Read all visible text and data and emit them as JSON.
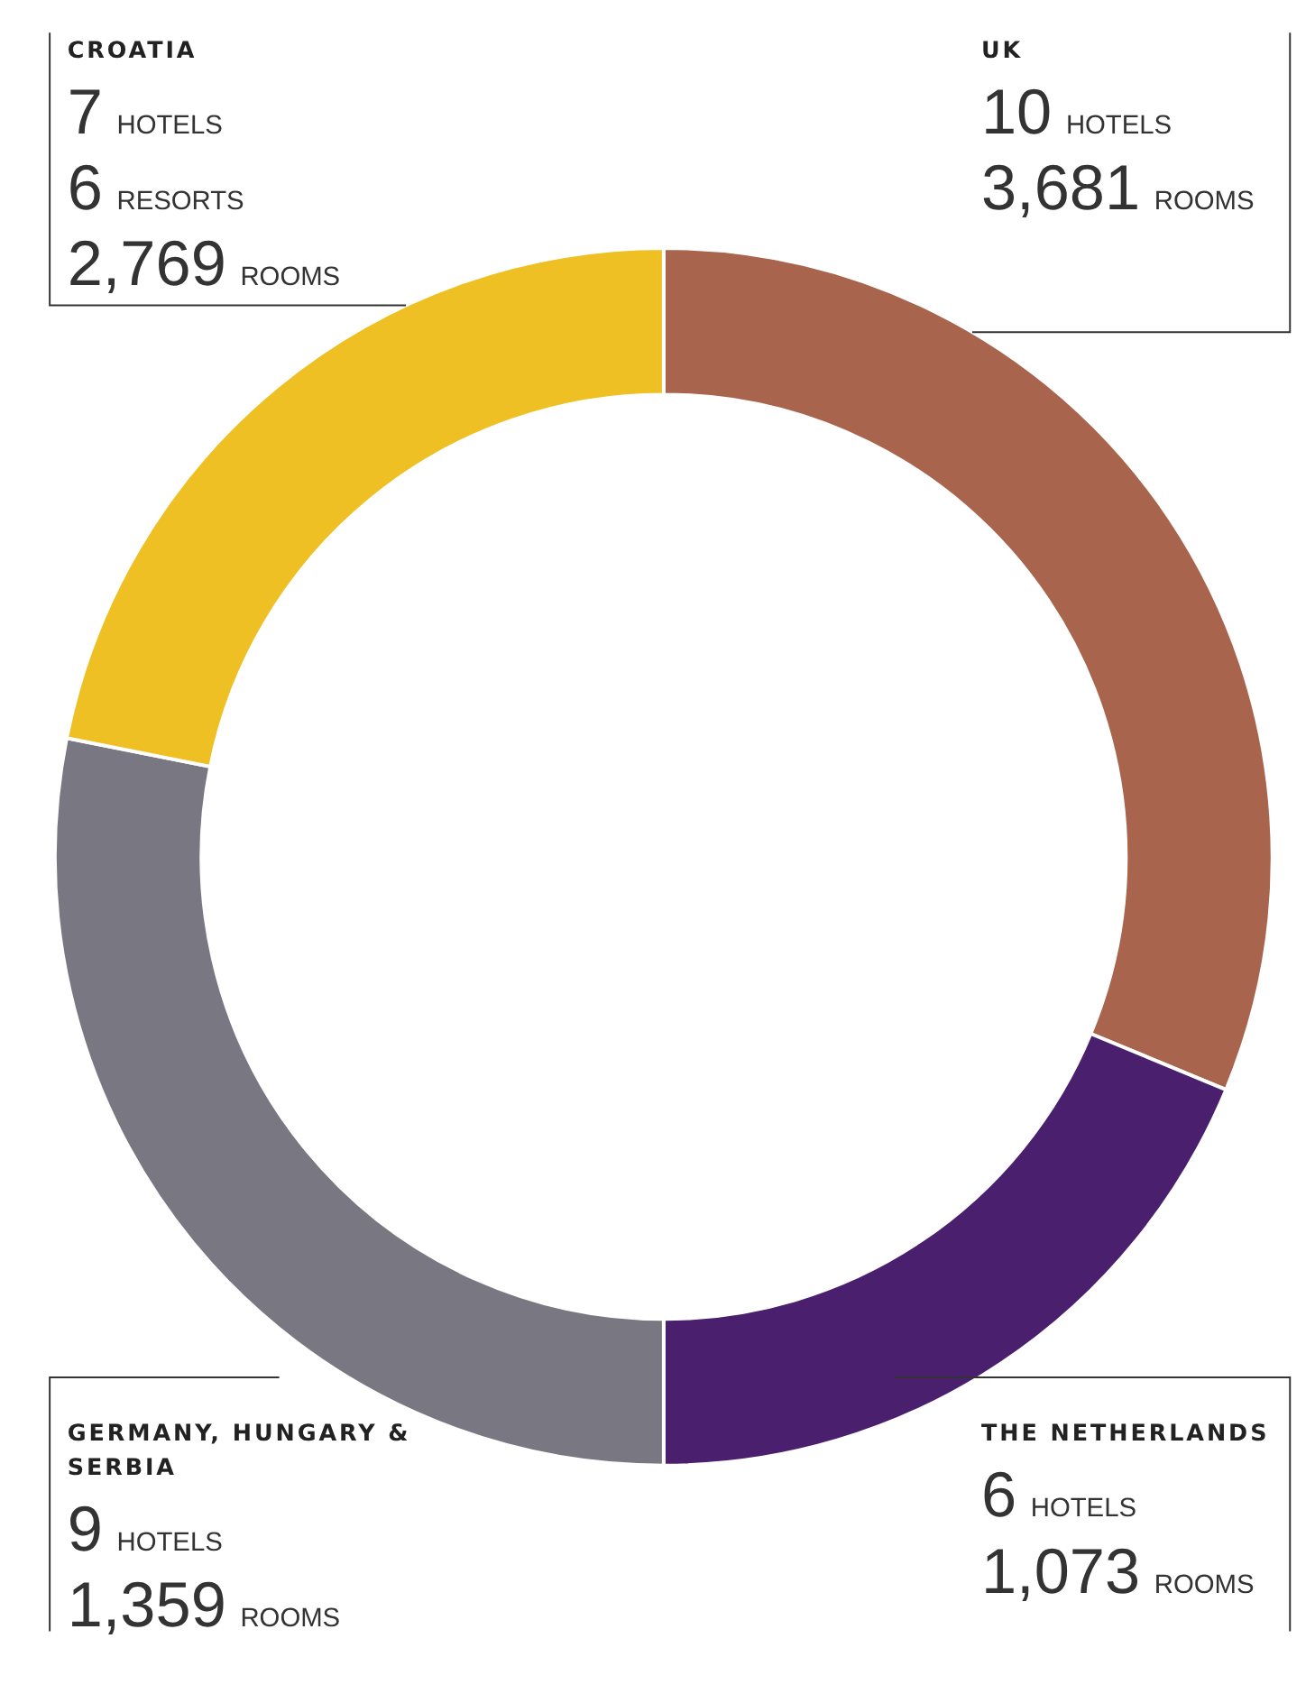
{
  "chart_data": {
    "type": "donut",
    "categories": [
      "UK",
      "THE NETHERLANDS",
      "GERMANY, HUNGARY & SERBIA",
      "CROATIA"
    ],
    "values": [
      10,
      6,
      9,
      7
    ],
    "colors": [
      "#a8644c",
      "#4a1f6e",
      "#797882",
      "#eec023"
    ],
    "value_labels": [
      "10 HOTELS",
      "6 HOTELS",
      "9 HOTELS",
      "7 HOTELS"
    ],
    "annotations": [
      {
        "text": "3,681 ROOMS",
        "x": "UK"
      },
      {
        "text": "1,073 ROOMS",
        "x": "THE NETHERLANDS"
      },
      {
        "text": "1,359 ROOMS",
        "x": "GERMANY, HUNGARY & SERBIA"
      },
      {
        "text": "6 RESORTS",
        "x": "CROATIA"
      },
      {
        "text": "2,769 ROOMS",
        "x": "CROATIA"
      }
    ]
  }
}
